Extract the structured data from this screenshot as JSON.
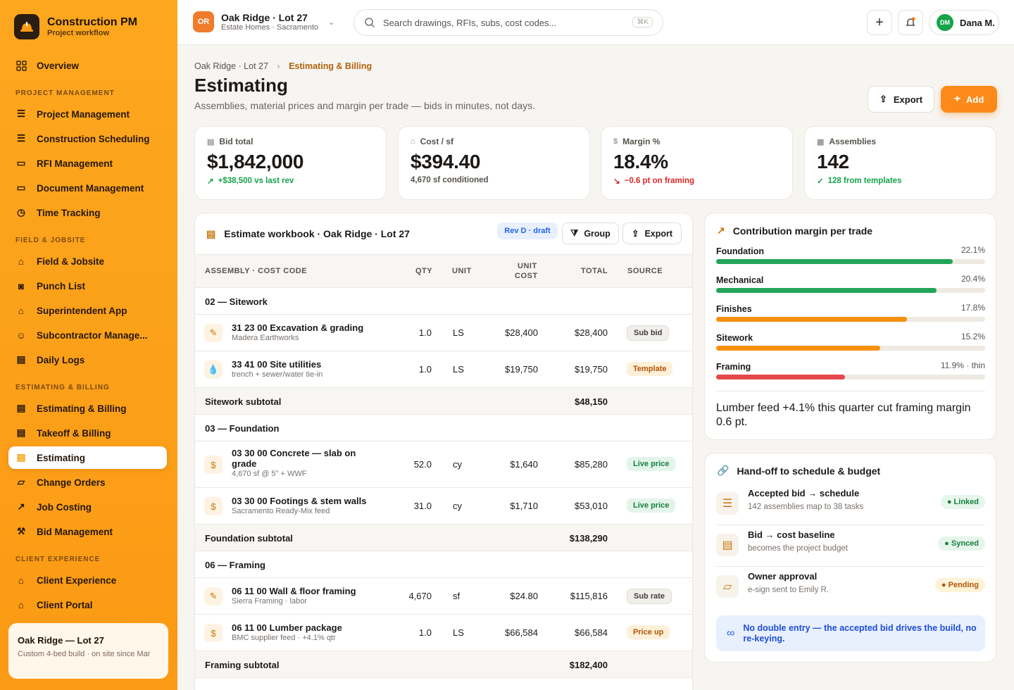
{
  "brand": {
    "name": "Construction PM",
    "tagline": "Project workflow"
  },
  "nav": {
    "overview": "Overview",
    "sections": {
      "pm": "PROJECT MANAGEMENT",
      "field": "FIELD & JOBSITE",
      "est": "ESTIMATING & BILLING",
      "client": "CLIENT EXPERIENCE"
    },
    "items": [
      "Project Management",
      "Construction Scheduling",
      "RFI Management",
      "Document Management",
      "Time Tracking",
      "Field & Jobsite",
      "Punch List",
      "Superintendent App",
      "Subcontractor Manage...",
      "Daily Logs",
      "Estimating & Billing",
      "Takeoff & Billing",
      "Estimating",
      "Change Orders",
      "Job Costing",
      "Bid Management",
      "Client Experience",
      "Client Portal"
    ]
  },
  "side_card": {
    "title": "Oak Ridge — Lot 27",
    "desc": "Custom 4-bed build · on site since Mar"
  },
  "topbar": {
    "project_badge": "OR",
    "project_name": "Oak Ridge · Lot 27",
    "project_sub": "Estate Homes · Sacramento",
    "search_placeholder": "Search drawings, RFIs, subs, cost codes...",
    "kbd": "⌘K",
    "user_initials": "DM",
    "user_name": "Dana M."
  },
  "page": {
    "crumb_root": "Oak Ridge · Lot 27",
    "crumb_current": "Estimating & Billing",
    "title": "Estimating",
    "subtitle": "Assemblies, material prices and margin per trade — bids in minutes, not days.",
    "export_label": "Export",
    "add_label": "Add"
  },
  "kpis": [
    {
      "label": "Bid total",
      "value": "$1,842,000",
      "delta": "+$38,500 vs last rev",
      "tone": "#16a34a"
    },
    {
      "label": "Cost / sf",
      "value": "$394.40",
      "delta": "4,670 sf conditioned",
      "tone": "#57534e"
    },
    {
      "label": "Margin %",
      "value": "18.4%",
      "delta": "−0.6 pt on framing",
      "tone": "#dc2626"
    },
    {
      "label": "Assemblies",
      "value": "142",
      "delta": "128 from templates",
      "tone": "#16a34a"
    }
  ],
  "workbook": {
    "title": "Estimate workbook · Oak Ridge · Lot 27",
    "rev": "Rev D · draft",
    "group_label": "Group",
    "export_label": "Export",
    "cols": {
      "assembly": "ASSEMBLY · COST CODE",
      "qty": "QTY",
      "unit": "UNIT",
      "unit_cost_1": "UNIT",
      "unit_cost_2": "COST",
      "total": "TOTAL",
      "source": "SOURCE"
    },
    "groups": [
      {
        "name": "02 — Sitework",
        "subtotal_label": "Sitework subtotal",
        "subtotal": "$48,150",
        "rows": [
          {
            "name": "31 23 00 Excavation & grading",
            "sub": "Madera Earthworks",
            "qty": "1.0",
            "unit": "LS",
            "unit_cost": "$28,400",
            "total": "$28,400",
            "source": "Sub bid",
            "icon": "✎"
          },
          {
            "name": "33 41 00 Site utilities",
            "sub": "trench + sewer/water tie-in",
            "qty": "1.0",
            "unit": "LS",
            "unit_cost": "$19,750",
            "total": "$19,750",
            "source": "Template",
            "icon": "💧"
          }
        ]
      },
      {
        "name": "03 — Foundation",
        "subtotal_label": "Foundation subtotal",
        "subtotal": "$138,290",
        "rows": [
          {
            "name": "03 30 00 Concrete — slab on grade",
            "sub": "4,670 sf @ 5\" + WWF",
            "qty": "52.0",
            "unit": "cy",
            "unit_cost": "$1,640",
            "total": "$85,280",
            "source": "Live price",
            "icon": "$"
          },
          {
            "name": "03 30 00 Footings & stem walls",
            "sub": "Sacramento Ready-Mix feed",
            "qty": "31.0",
            "unit": "cy",
            "unit_cost": "$1,710",
            "total": "$53,010",
            "source": "Live price",
            "icon": "$"
          }
        ]
      },
      {
        "name": "06 — Framing",
        "subtotal_label": "Framing subtotal",
        "subtotal": "$182,400",
        "rows": [
          {
            "name": "06 11 00 Wall & floor framing",
            "sub": "Sierra Framing · labor",
            "qty": "4,670",
            "unit": "sf",
            "unit_cost": "$24.80",
            "total": "$115,816",
            "source": "Sub rate",
            "icon": "✎"
          },
          {
            "name": "06 11 00 Lumber package",
            "sub": "BMC supplier feed · +4.1% qtr",
            "qty": "1.0",
            "unit": "LS",
            "unit_cost": "$66,584",
            "total": "$66,584",
            "source": "Price up",
            "icon": "$"
          }
        ]
      }
    ]
  },
  "margin": {
    "title": "Contribution margin per trade",
    "trades": [
      {
        "name": "Foundation",
        "label": "22.1%",
        "fraction": 0.88,
        "color": "#22a55a"
      },
      {
        "name": "Mechanical",
        "label": "20.4%",
        "fraction": 0.82,
        "color": "#22a55a"
      },
      {
        "name": "Finishes",
        "label": "17.8%",
        "fraction": 0.71,
        "color": "#f7900f"
      },
      {
        "name": "Sitework",
        "label": "15.2%",
        "fraction": 0.61,
        "color": "#f7900f"
      },
      {
        "name": "Framing",
        "label": "11.9% · thin",
        "fraction": 0.48,
        "color": "#e5484d"
      }
    ],
    "note": "Lumber feed +4.1% this quarter cut framing margin 0.6 pt."
  },
  "handoff": {
    "title": "Hand-off to schedule & budget",
    "items": [
      {
        "title": "Accepted bid → schedule",
        "sub": "142 assemblies map to 38 tasks",
        "status": "Linked"
      },
      {
        "title": "Bid → cost baseline",
        "sub": "becomes the project budget",
        "status": "Synced"
      },
      {
        "title": "Owner approval",
        "sub": "e-sign sent to Emily R.",
        "status": "Pending"
      }
    ],
    "banner": "No double entry — the accepted bid drives the build, no re-keying."
  }
}
